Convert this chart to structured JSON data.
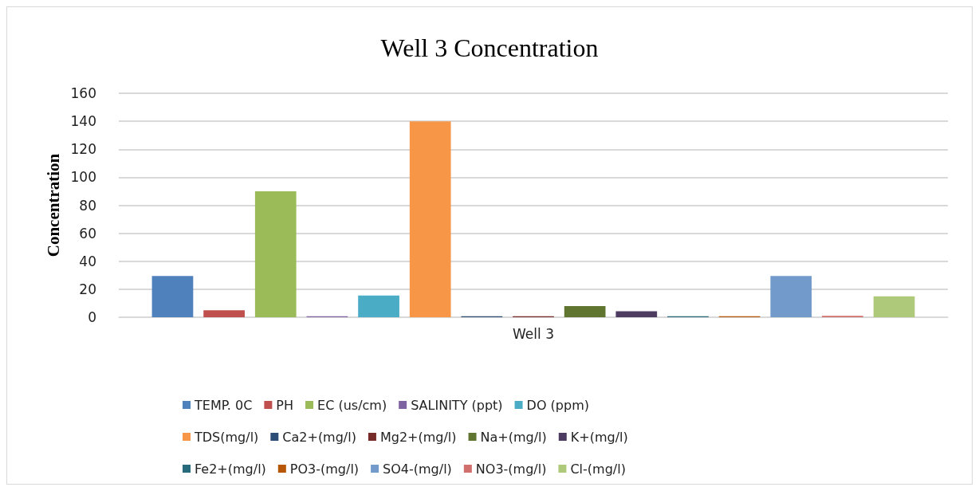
{
  "chart_data": {
    "type": "bar",
    "title": "Well 3 Concentration",
    "ylabel": "Concentration",
    "categories": [
      "Well 3"
    ],
    "ylim": [
      0,
      160
    ],
    "yticks": [
      0,
      20,
      40,
      60,
      80,
      100,
      120,
      140,
      160
    ],
    "grid": "y",
    "legend": "bottom",
    "series": [
      {
        "name": "TEMP. 0C",
        "color": "#4f81bd",
        "values": [
          29.5
        ]
      },
      {
        "name": "PH",
        "color": "#c0504d",
        "values": [
          5
        ]
      },
      {
        "name": "EC (us/cm)",
        "color": "#9bbb59",
        "values": [
          90
        ]
      },
      {
        "name": "SALINITY (ppt)",
        "color": "#8064a2",
        "values": [
          0.7
        ]
      },
      {
        "name": "DO (ppm)",
        "color": "#4bacc6",
        "values": [
          15.5
        ]
      },
      {
        "name": "TDS(mg/l)",
        "color": "#f79646",
        "values": [
          140
        ]
      },
      {
        "name": "Ca2+(mg/l)",
        "color": "#2c4d75",
        "values": [
          0.7
        ]
      },
      {
        "name": "Mg2+(mg/l)",
        "color": "#772c2a",
        "values": [
          0.7
        ]
      },
      {
        "name": "Na+(mg/l)",
        "color": "#5f7530",
        "values": [
          8
        ]
      },
      {
        "name": "K+(mg/l)",
        "color": "#4d3b62",
        "values": [
          4.3
        ]
      },
      {
        "name": "Fe2+(mg/l)",
        "color": "#276a7c",
        "values": [
          0.7
        ]
      },
      {
        "name": "PO3-(mg/l)",
        "color": "#b65708",
        "values": [
          0.7
        ]
      },
      {
        "name": "SO4-(mg/l)",
        "color": "#729aca",
        "values": [
          29.5
        ]
      },
      {
        "name": "NO3-(mg/l)",
        "color": "#d16f6c",
        "values": [
          1
        ]
      },
      {
        "name": "Cl-(mg/l)",
        "color": "#afc97a",
        "values": [
          15
        ]
      }
    ]
  }
}
